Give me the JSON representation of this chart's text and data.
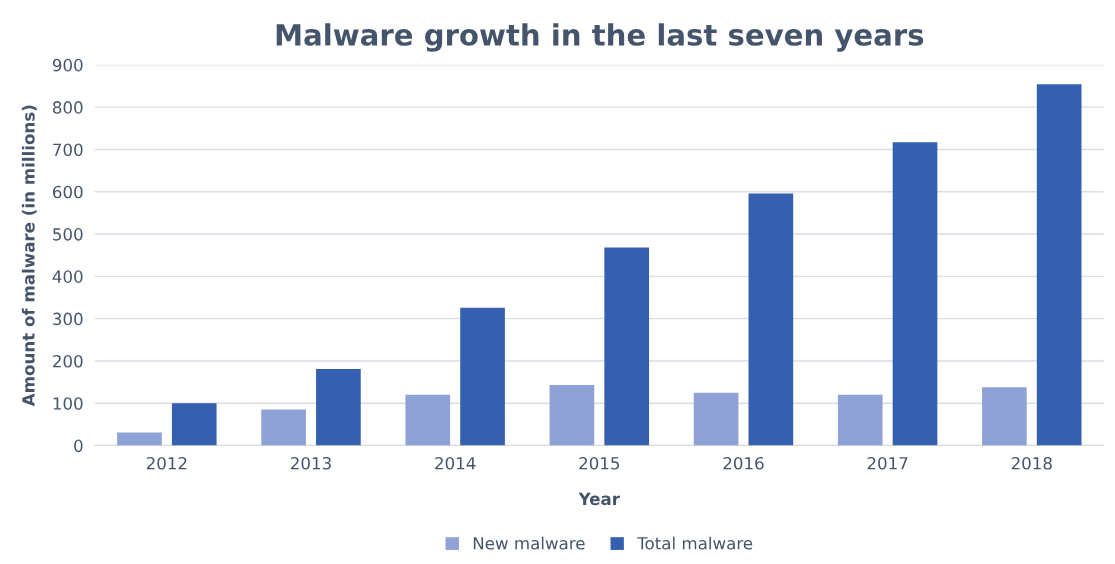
{
  "chart_data": {
    "type": "bar",
    "title": "Malware growth in the last seven years",
    "xlabel": "Year",
    "ylabel": "Amount of malware (in millions)",
    "categories": [
      "2012",
      "2013",
      "2014",
      "2015",
      "2016",
      "2017",
      "2018"
    ],
    "series": [
      {
        "name": "New malware",
        "color": "#8fa2d6",
        "values": [
          31,
          85,
          120,
          143,
          125,
          120,
          138
        ]
      },
      {
        "name": "Total malware",
        "color": "#3560b0",
        "values": [
          100,
          181,
          326,
          468,
          596,
          717,
          854
        ]
      }
    ],
    "ylim": [
      0,
      900
    ],
    "yticks": [
      0,
      100,
      200,
      300,
      400,
      500,
      600,
      700,
      800,
      900
    ],
    "grid": "y",
    "legend": "bottom"
  }
}
